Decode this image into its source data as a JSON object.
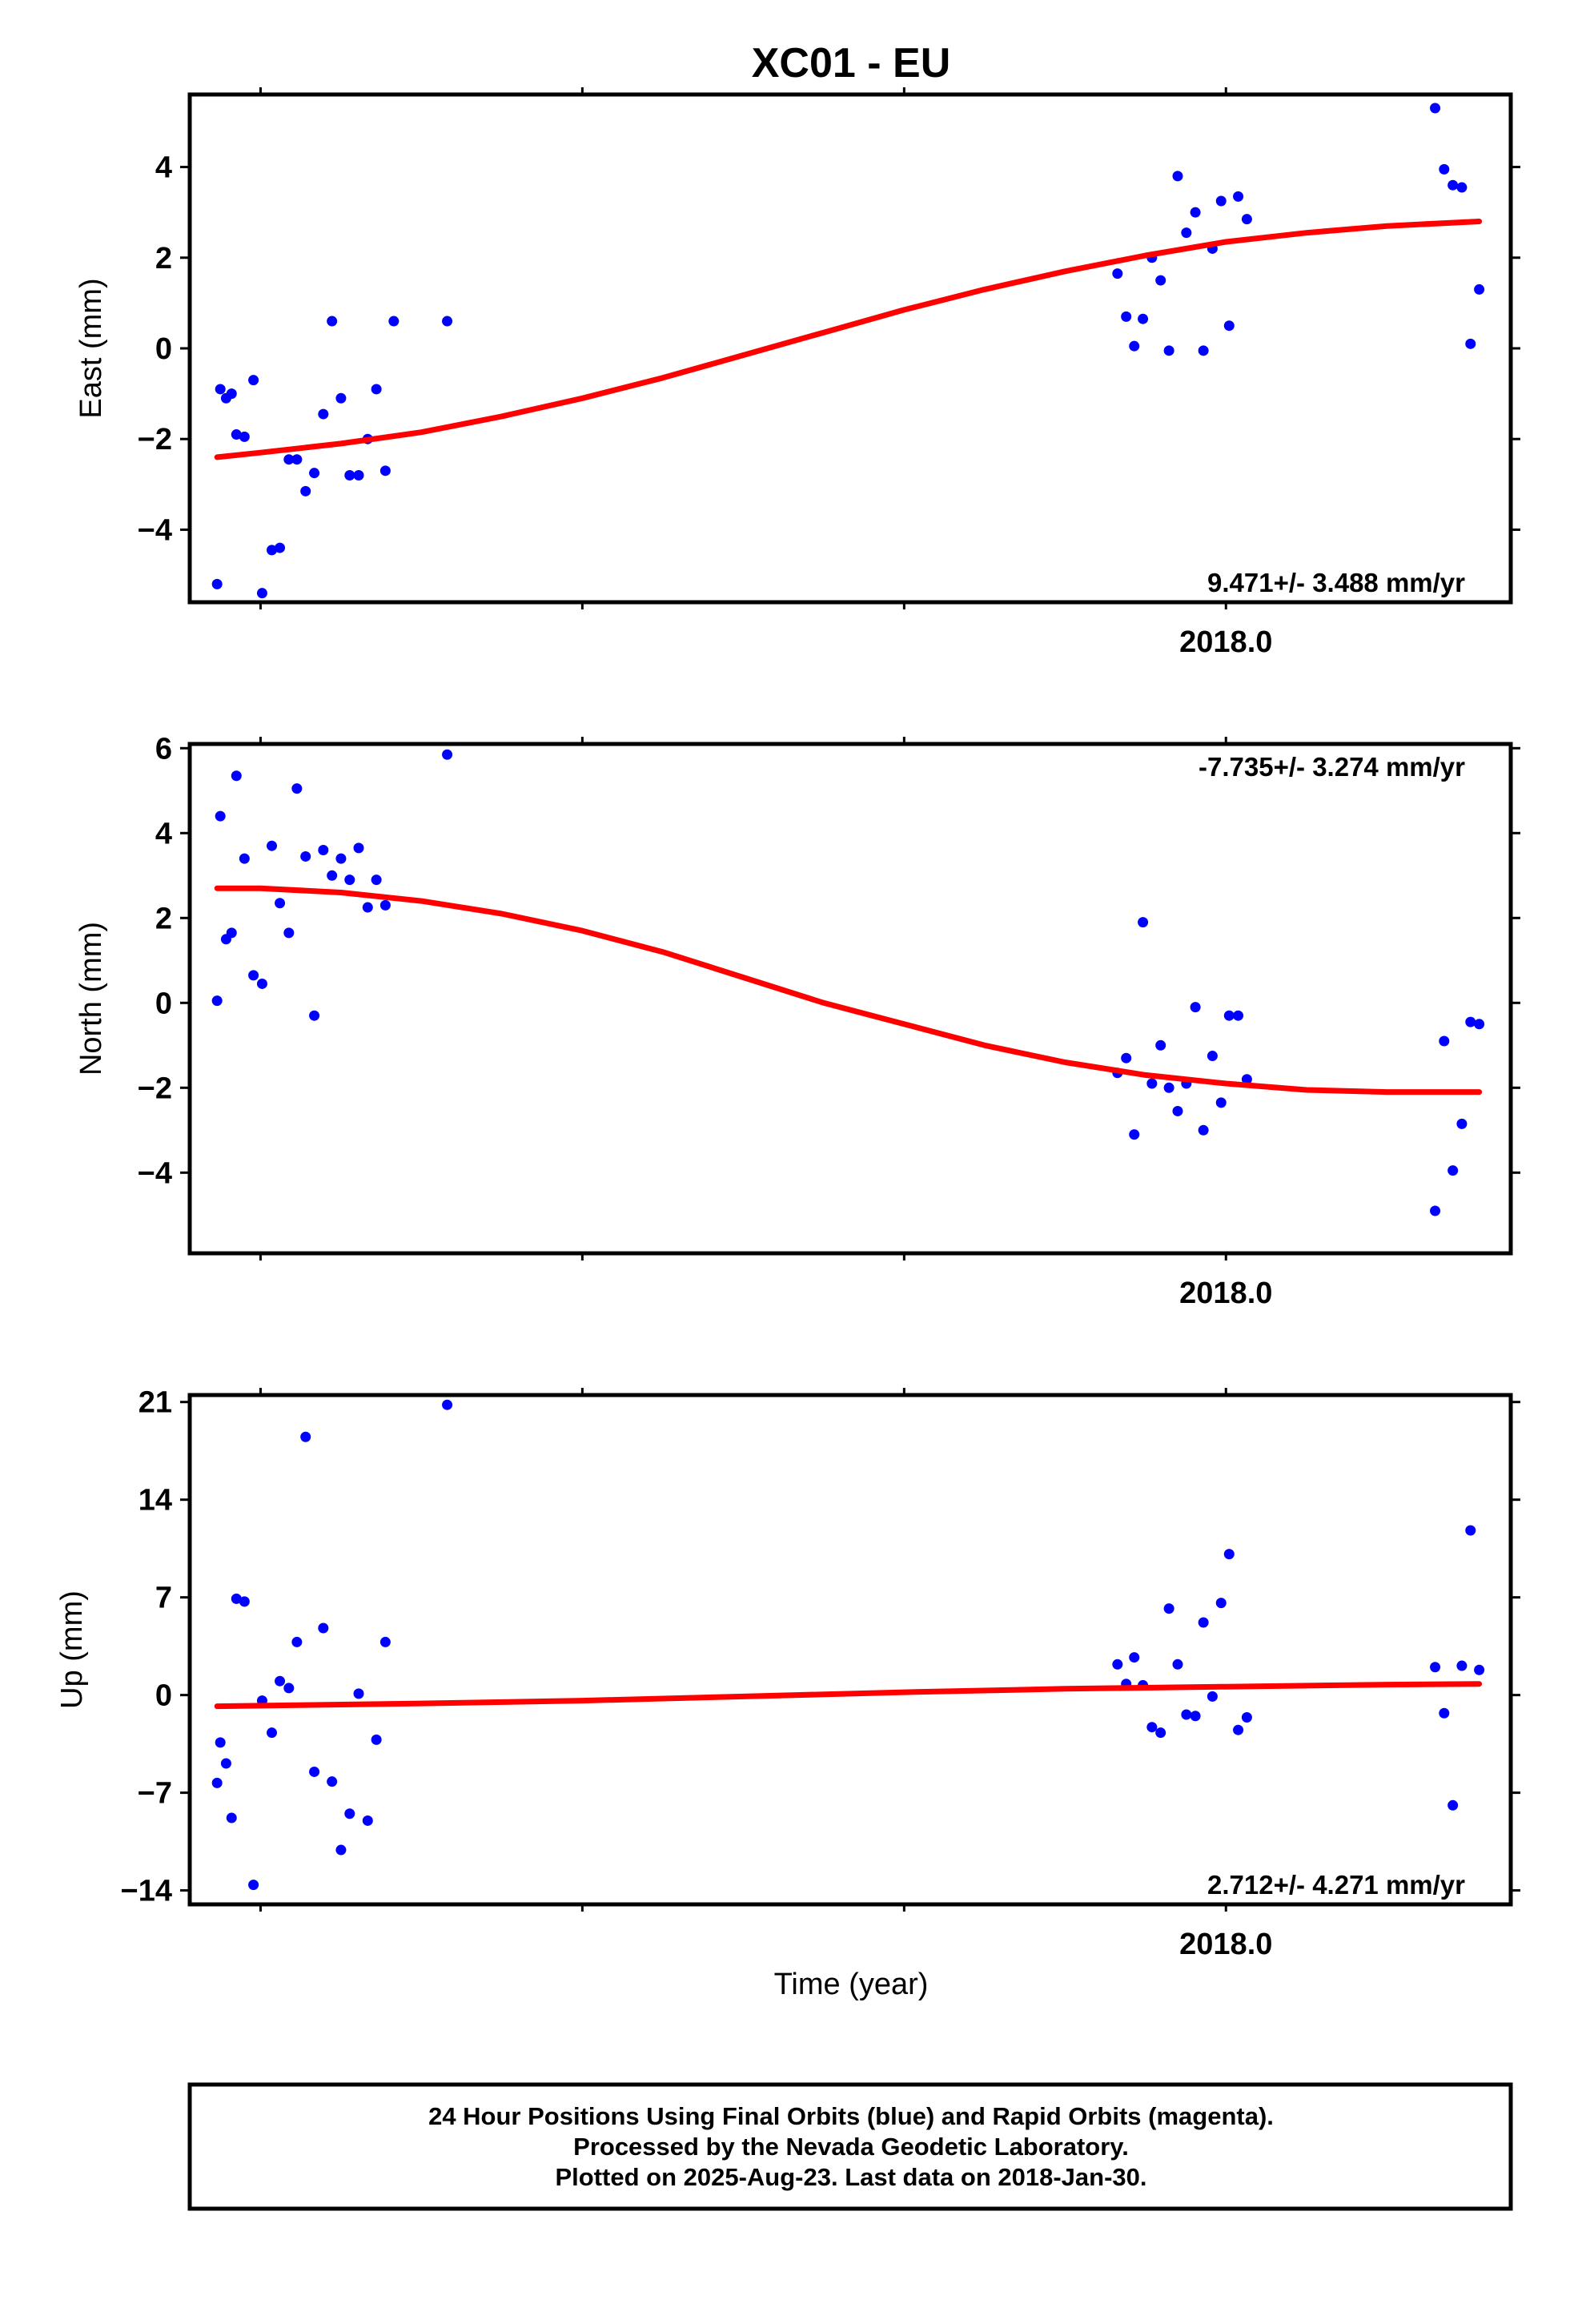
{
  "figure": {
    "title": "XC01 - EU",
    "xlabel": "Time (year)",
    "caption": [
      "24 Hour Positions Using Final Orbits (blue) and Rapid Orbits (magenta).",
      "Processed by the Nevada Geodetic Laboratory.",
      "Plotted on 2025-Aug-23. Last data on 2018-Jan-30."
    ]
  },
  "colors": {
    "final": "#0000ff",
    "fit": "#ff0000",
    "frame": "#000000"
  },
  "chart_data": [
    {
      "type": "scatter",
      "ylabel": "East (mm)",
      "rate_label": "9.471+/- 3.488 mm/yr",
      "rate_position": "bottom-right",
      "xlim": [
        2014.78,
        2018.885
      ],
      "ylim": [
        -5.6,
        5.6
      ],
      "x_tick_label": "2018.0",
      "x_ticks": [
        2015.0,
        2016.0,
        2017.0,
        2018.0
      ],
      "y_ticks": [
        -4,
        -2,
        0,
        2,
        4
      ],
      "grid": false,
      "series": [
        {
          "x": [
            2014.865,
            2014.875,
            2014.893,
            2014.91,
            2014.925,
            2014.95,
            2014.978,
            2015.005,
            2015.035,
            2015.06,
            2015.088,
            2015.113,
            2015.14,
            2015.167,
            2015.195,
            2015.222,
            2015.25,
            2015.277,
            2015.305,
            2015.333,
            2015.36,
            2015.388,
            2015.414,
            2015.58,
            2017.663,
            2017.69,
            2017.715,
            2017.742,
            2017.77,
            2017.797,
            2017.823,
            2017.85,
            2017.877,
            2017.905,
            2017.93,
            2017.958,
            2017.985,
            2018.01,
            2018.038,
            2018.065,
            2018.65,
            2018.678,
            2018.705,
            2018.733,
            2018.76,
            2018.787
          ],
          "y": [
            -5.2,
            -0.9,
            -1.1,
            -1.0,
            -1.9,
            -1.95,
            -0.7,
            -5.4,
            -4.45,
            -4.4,
            -2.45,
            -2.45,
            -3.15,
            -2.75,
            -1.45,
            0.6,
            -1.1,
            -2.8,
            -2.8,
            -2.0,
            -0.9,
            -2.7,
            0.6,
            0.6,
            1.65,
            0.7,
            0.05,
            0.65,
            2.0,
            1.5,
            -0.05,
            3.8,
            2.55,
            3.0,
            -0.05,
            2.2,
            3.25,
            0.5,
            3.35,
            2.85,
            5.3,
            3.95,
            3.6,
            3.55,
            0.1,
            1.3
          ]
        }
      ],
      "fit_rate_note": "trend curve",
      "fit": {
        "x": [
          2014.865,
          2015.0,
          2015.25,
          2015.5,
          2015.75,
          2016.0,
          2016.25,
          2016.5,
          2016.75,
          2017.0,
          2017.25,
          2017.5,
          2017.75,
          2018.0,
          2018.25,
          2018.5,
          2018.787
        ],
        "y": [
          -2.4,
          -2.3,
          -2.1,
          -1.85,
          -1.5,
          -1.1,
          -0.65,
          -0.15,
          0.35,
          0.85,
          1.3,
          1.7,
          2.05,
          2.35,
          2.55,
          2.7,
          2.8
        ]
      }
    },
    {
      "type": "scatter",
      "ylabel": "North (mm)",
      "rate_label": "-7.735+/- 3.274 mm/yr",
      "rate_position": "top-right",
      "xlim": [
        2014.78,
        2018.885
      ],
      "ylim": [
        -5.9,
        6.1
      ],
      "x_tick_label": "2018.0",
      "x_ticks": [
        2015.0,
        2016.0,
        2017.0,
        2018.0
      ],
      "y_ticks": [
        -4,
        -2,
        0,
        2,
        4,
        6
      ],
      "grid": false,
      "series": [
        {
          "x": [
            2014.865,
            2014.875,
            2014.893,
            2014.91,
            2014.925,
            2014.95,
            2014.978,
            2015.005,
            2015.035,
            2015.06,
            2015.088,
            2015.113,
            2015.14,
            2015.167,
            2015.195,
            2015.222,
            2015.25,
            2015.277,
            2015.305,
            2015.333,
            2015.36,
            2015.388,
            2015.58,
            2017.663,
            2017.69,
            2017.715,
            2017.742,
            2017.77,
            2017.797,
            2017.823,
            2017.85,
            2017.877,
            2017.905,
            2017.93,
            2017.958,
            2017.985,
            2018.01,
            2018.038,
            2018.065,
            2018.65,
            2018.678,
            2018.705,
            2018.733,
            2018.76,
            2018.787
          ],
          "y": [
            0.05,
            4.4,
            1.5,
            1.65,
            5.35,
            3.4,
            0.65,
            0.45,
            3.7,
            2.35,
            1.65,
            5.05,
            3.45,
            -0.3,
            3.6,
            3.0,
            3.4,
            2.9,
            3.65,
            2.25,
            2.9,
            2.3,
            5.85,
            -1.65,
            -1.3,
            -3.1,
            1.9,
            -1.9,
            -1.0,
            -2.0,
            -2.55,
            -1.9,
            -0.1,
            -3.0,
            -1.25,
            -2.35,
            -0.3,
            -0.3,
            -1.8,
            -4.9,
            -0.9,
            -3.95,
            -2.85,
            -0.45,
            -0.5
          ]
        }
      ],
      "fit": {
        "x": [
          2014.865,
          2015.0,
          2015.25,
          2015.5,
          2015.75,
          2016.0,
          2016.25,
          2016.5,
          2016.75,
          2017.0,
          2017.25,
          2017.5,
          2017.75,
          2018.0,
          2018.25,
          2018.5,
          2018.787
        ],
        "y": [
          2.7,
          2.7,
          2.6,
          2.4,
          2.1,
          1.7,
          1.2,
          0.6,
          0.0,
          -0.5,
          -1.0,
          -1.4,
          -1.7,
          -1.9,
          -2.05,
          -2.1,
          -2.1
        ]
      }
    },
    {
      "type": "scatter",
      "ylabel": "Up (mm)",
      "rate_label": "2.712+/- 4.271 mm/yr",
      "rate_position": "bottom-right",
      "xlim": [
        2014.78,
        2018.885
      ],
      "ylim": [
        -15.0,
        21.5
      ],
      "x_tick_label": "2018.0",
      "x_ticks": [
        2015.0,
        2016.0,
        2017.0,
        2018.0
      ],
      "y_ticks": [
        -14,
        -7,
        0,
        7,
        14,
        21
      ],
      "grid": false,
      "series": [
        {
          "x": [
            2014.865,
            2014.875,
            2014.893,
            2014.91,
            2014.925,
            2014.95,
            2014.978,
            2015.005,
            2015.035,
            2015.06,
            2015.088,
            2015.113,
            2015.14,
            2015.167,
            2015.195,
            2015.222,
            2015.25,
            2015.277,
            2015.305,
            2015.333,
            2015.36,
            2015.388,
            2015.58,
            2017.663,
            2017.69,
            2017.715,
            2017.742,
            2017.77,
            2017.797,
            2017.823,
            2017.85,
            2017.877,
            2017.905,
            2017.93,
            2017.958,
            2017.985,
            2018.01,
            2018.038,
            2018.065,
            2018.65,
            2018.678,
            2018.705,
            2018.733,
            2018.76,
            2018.787
          ],
          "y": [
            -6.3,
            -3.4,
            -4.9,
            -8.8,
            6.9,
            6.7,
            -13.6,
            -0.4,
            -2.7,
            1.0,
            0.5,
            3.8,
            18.5,
            -5.5,
            4.8,
            -6.2,
            -11.1,
            -8.5,
            0.1,
            -9.0,
            -3.2,
            3.8,
            20.8,
            2.2,
            0.8,
            2.7,
            0.7,
            -2.3,
            -2.7,
            6.2,
            2.2,
            -1.4,
            -1.5,
            5.2,
            -0.1,
            6.6,
            10.1,
            -2.5,
            -1.6,
            2.0,
            -1.3,
            -7.9,
            2.1,
            11.8,
            1.8
          ]
        }
      ],
      "fit": {
        "x": [
          2014.865,
          2015.5,
          2016.0,
          2016.5,
          2017.0,
          2017.5,
          2018.0,
          2018.5,
          2018.787
        ],
        "y": [
          -0.8,
          -0.6,
          -0.4,
          -0.1,
          0.2,
          0.45,
          0.6,
          0.75,
          0.8
        ]
      }
    }
  ]
}
